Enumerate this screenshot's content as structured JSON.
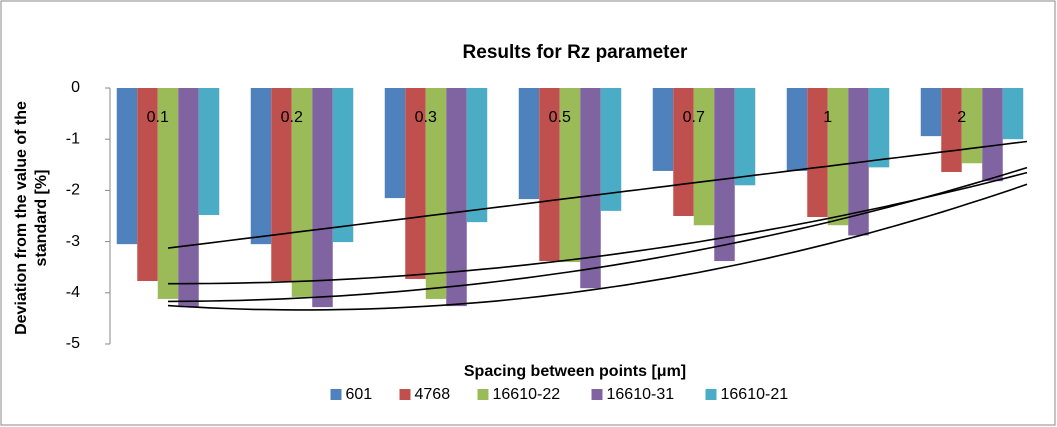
{
  "chart_data": {
    "type": "bar",
    "title": "Results for Rz parameter",
    "y_label": [
      "Deviation from the value of the",
      "standard [%]"
    ],
    "x_label": "Spacing between points [μm]",
    "categories": [
      "0.1",
      "0.2",
      "0.3",
      "0.5",
      "0.7",
      "1",
      "2"
    ],
    "series": [
      {
        "name": "601",
        "color": "#4f81bd",
        "values": [
          -3.05,
          -3.05,
          -2.15,
          -2.17,
          -1.62,
          -1.62,
          -0.94
        ]
      },
      {
        "name": "4768",
        "color": "#c0504d",
        "values": [
          -3.77,
          -3.77,
          -3.73,
          -3.38,
          -2.5,
          -2.52,
          -1.64
        ]
      },
      {
        "name": "16610-22",
        "color": "#9bbb59",
        "values": [
          -4.12,
          -4.08,
          -4.12,
          -3.4,
          -2.68,
          -2.68,
          -1.47
        ]
      },
      {
        "name": "16610-31",
        "color": "#8064a2",
        "values": [
          -4.28,
          -4.28,
          -4.26,
          -3.91,
          -3.38,
          -2.88,
          -1.82
        ]
      },
      {
        "name": "16610-21",
        "color": "#4bacc6",
        "values": [
          -2.48,
          -3.01,
          -2.62,
          -2.4,
          -1.9,
          -1.55,
          -1.0
        ]
      }
    ],
    "trendline_orders": [
      1,
      2,
      2,
      2,
      null
    ],
    "ylim": [
      -5,
      0
    ],
    "yticks": [
      -5,
      -4,
      -3,
      -2,
      -1,
      0
    ],
    "grid": false,
    "legend": "bottom"
  }
}
